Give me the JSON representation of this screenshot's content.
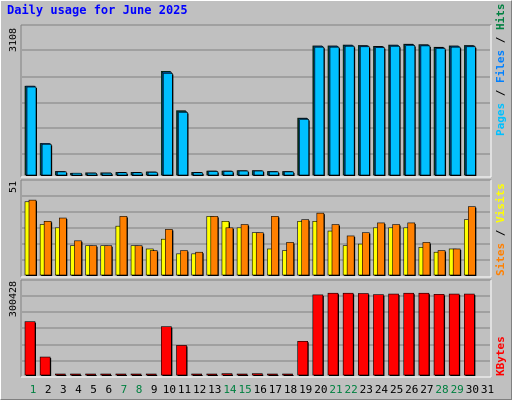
{
  "title": "Daily usage for June 2025",
  "colors": {
    "pages": "#00c0ff",
    "files": "#0080ff",
    "hits": "#008040",
    "visits": "#ffff00",
    "sites": "#ff8000",
    "kbytes": "#ff0000",
    "panel_bg": "#c0c0c0",
    "weekend": "#008040"
  },
  "chart_data": [
    {
      "type": "bar",
      "name": "hits-files-pages",
      "ymax_label": "3108",
      "ylim": [
        0,
        3108
      ],
      "legend": [
        "Pages",
        "Files",
        "Hits"
      ],
      "x": [
        1,
        2,
        3,
        4,
        5,
        6,
        7,
        8,
        9,
        10,
        11,
        12,
        13,
        14,
        15,
        16,
        17,
        18,
        19,
        20,
        21,
        22,
        23,
        24,
        25,
        26,
        27,
        28,
        29,
        30
      ],
      "series": [
        {
          "name": "Hits",
          "values": [
            2030,
            720,
            80,
            40,
            50,
            50,
            60,
            60,
            70,
            2370,
            1470,
            60,
            90,
            90,
            100,
            100,
            80,
            80,
            1300,
            2950,
            2950,
            2970,
            2960,
            2940,
            2970,
            2990,
            2980,
            2920,
            2950,
            2960
          ]
        },
        {
          "name": "Files",
          "values": [
            2030,
            720,
            80,
            40,
            50,
            50,
            60,
            60,
            70,
            2350,
            1450,
            60,
            90,
            90,
            100,
            100,
            80,
            80,
            1290,
            2940,
            2940,
            2960,
            2950,
            2930,
            2960,
            2980,
            2970,
            2910,
            2940,
            2950
          ]
        },
        {
          "name": "Pages",
          "values": [
            2010,
            700,
            70,
            40,
            40,
            40,
            50,
            50,
            60,
            2320,
            1430,
            50,
            80,
            80,
            90,
            90,
            70,
            70,
            1270,
            2920,
            2920,
            2940,
            2930,
            2910,
            2940,
            2960,
            2950,
            2890,
            2920,
            2930
          ]
        }
      ]
    },
    {
      "type": "bar",
      "name": "visits-sites",
      "ymax_label": "51",
      "ylim": [
        0,
        51
      ],
      "legend": [
        "Sites",
        "Visits"
      ],
      "x": [
        1,
        2,
        3,
        4,
        5,
        6,
        7,
        8,
        9,
        10,
        11,
        12,
        13,
        14,
        15,
        16,
        17,
        18,
        19,
        20,
        21,
        22,
        23,
        24,
        25,
        26,
        27,
        28,
        29,
        30
      ],
      "series": [
        {
          "name": "Visits",
          "values": [
            45,
            31,
            29,
            18,
            18,
            18,
            30,
            18,
            16,
            22,
            13,
            13,
            36,
            33,
            29,
            26,
            16,
            15,
            33,
            33,
            27,
            18,
            19,
            29,
            29,
            29,
            17,
            14,
            16,
            34
          ]
        },
        {
          "name": "Sites",
          "values": [
            46,
            33,
            35,
            21,
            18,
            18,
            36,
            18,
            15,
            28,
            15,
            14,
            36,
            29,
            31,
            26,
            36,
            20,
            34,
            38,
            31,
            24,
            26,
            32,
            31,
            32,
            20,
            15,
            16,
            42
          ]
        }
      ]
    },
    {
      "type": "bar",
      "name": "kbytes",
      "ymax_label": "300428",
      "ylim": [
        0,
        300428
      ],
      "legend": [
        "KBytes"
      ],
      "x": [
        1,
        2,
        3,
        4,
        5,
        6,
        7,
        8,
        9,
        10,
        11,
        12,
        13,
        14,
        15,
        16,
        17,
        18,
        19,
        20,
        21,
        22,
        23,
        24,
        25,
        26,
        27,
        28,
        29,
        30
      ],
      "series": [
        {
          "name": "KBytes",
          "values": [
            193000,
            65000,
            3000,
            1500,
            1500,
            1500,
            2000,
            2000,
            2000,
            175000,
            107000,
            2000,
            3000,
            5000,
            3000,
            5000,
            3000,
            3000,
            122000,
            290000,
            296000,
            296000,
            295000,
            291000,
            293000,
            296000,
            296000,
            292000,
            293000,
            293000
          ]
        }
      ]
    }
  ],
  "day_labels": [
    "1",
    "2",
    "3",
    "4",
    "5",
    "6",
    "7",
    "8",
    "9",
    "10",
    "11",
    "12",
    "13",
    "14",
    "15",
    "16",
    "17",
    "18",
    "19",
    "20",
    "21",
    "22",
    "23",
    "24",
    "25",
    "26",
    "27",
    "28",
    "29",
    "30",
    "31"
  ],
  "weekend_days": [
    1,
    7,
    8,
    14,
    15,
    21,
    22,
    28,
    29
  ]
}
